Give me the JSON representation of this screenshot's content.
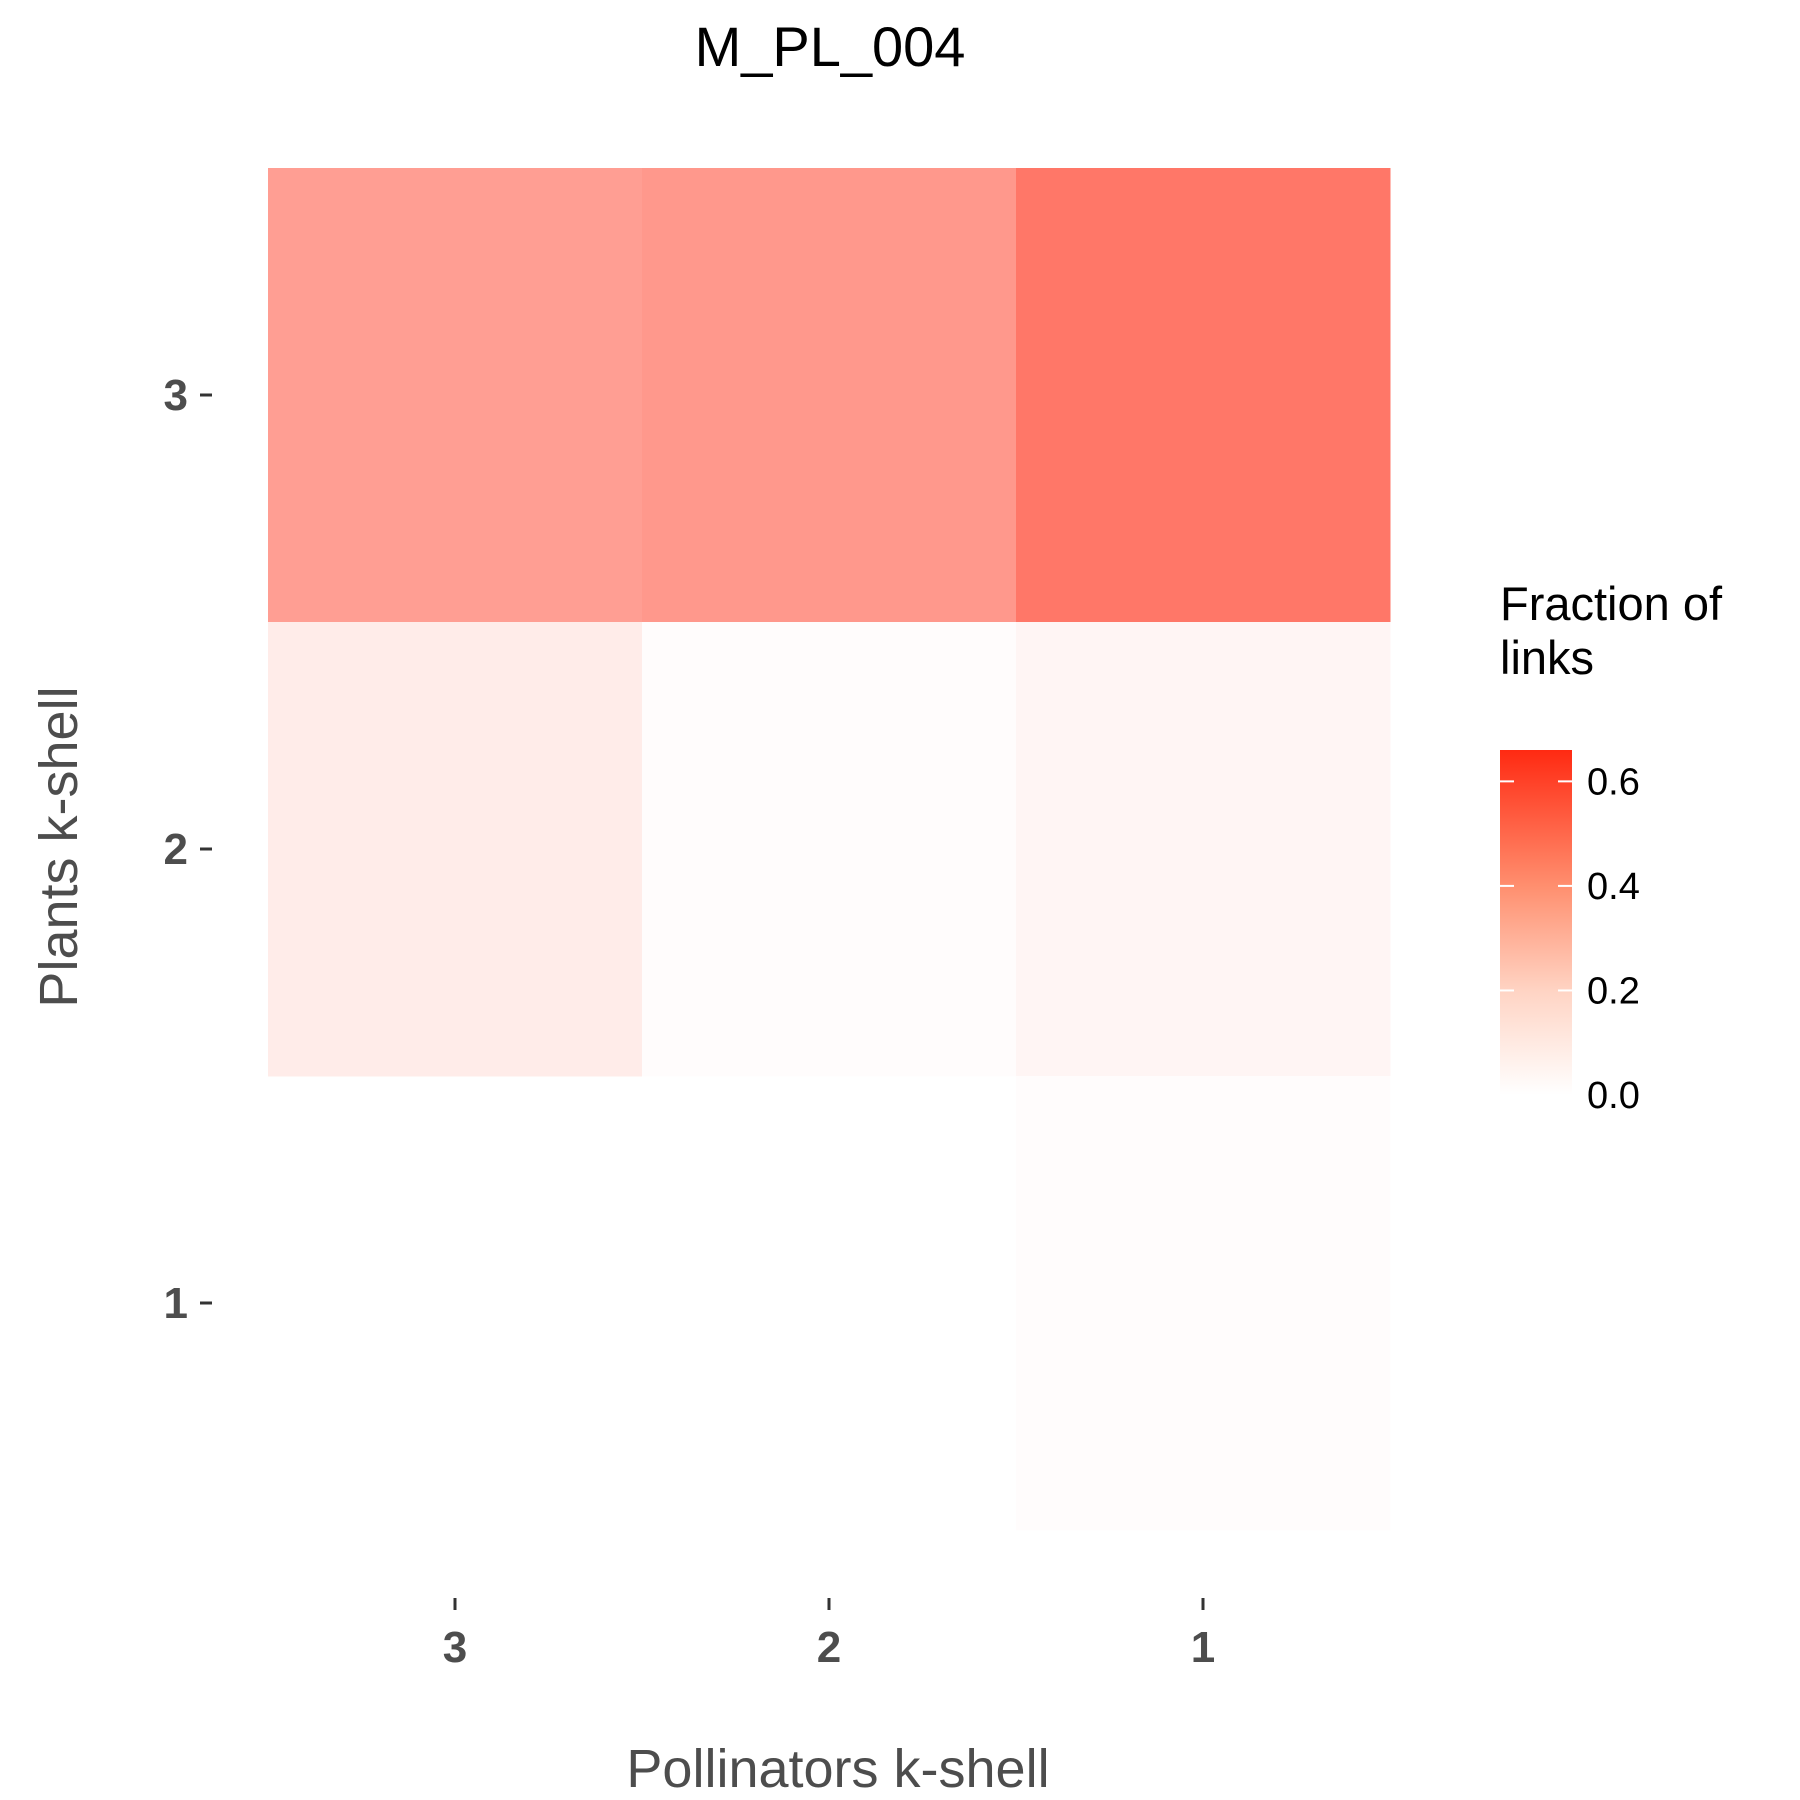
{
  "chart_data": {
    "type": "heatmap",
    "title": "M_PL_004",
    "xlabel": "Pollinators k-shell",
    "ylabel": "Plants k-shell",
    "x_categories": [
      "3",
      "2",
      "1"
    ],
    "y_categories": [
      "3",
      "2",
      "1"
    ],
    "values": [
      [
        0.3,
        0.32,
        0.42
      ],
      [
        0.06,
        0.0,
        0.03
      ],
      [
        null,
        null,
        0.0
      ]
    ],
    "colorscale": {
      "low": "#ffffff",
      "high": "#ff2a12",
      "min": 0.0,
      "max": 0.66
    },
    "legend": {
      "title_line1": "Fraction of",
      "title_line2": "links",
      "ticks": [
        "0.0",
        "0.2",
        "0.4",
        "0.6"
      ],
      "tick_values": [
        0.0,
        0.2,
        0.4,
        0.6
      ],
      "position": "right"
    },
    "grid": false
  }
}
